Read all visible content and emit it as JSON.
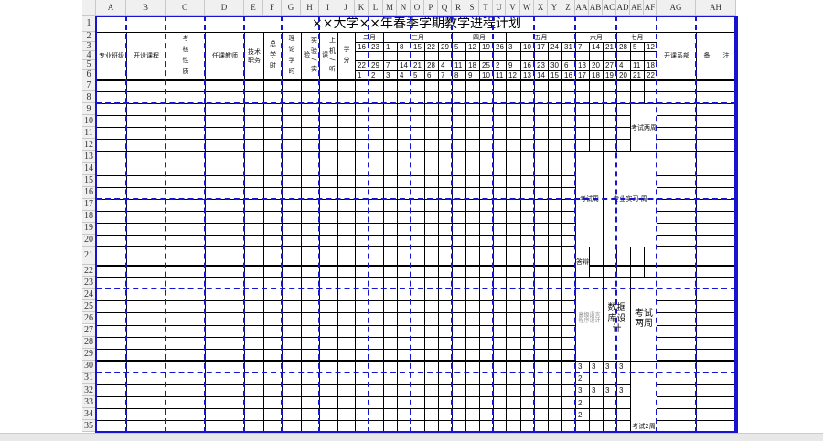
{
  "sheet": {
    "title": "××大学××年春季学期教学进程计划",
    "columns": [
      "A",
      "B",
      "C",
      "D",
      "E",
      "F",
      "G",
      "H",
      "I",
      "J",
      "K",
      "L",
      "M",
      "N",
      "O",
      "P",
      "Q",
      "R",
      "S",
      "T",
      "U",
      "V",
      "W",
      "X",
      "Y",
      "Z",
      "AA",
      "AB",
      "AC",
      "AD",
      "AE",
      "AF",
      "AG",
      "AH"
    ],
    "rows": [
      "1",
      "2",
      "3",
      "4",
      "5",
      "6",
      "7",
      "8",
      "9",
      "10",
      "11",
      "12",
      "13",
      "14",
      "15",
      "16",
      "17",
      "18",
      "19",
      "20",
      "21",
      "22",
      "23",
      "24",
      "25",
      "26",
      "27",
      "28",
      "29",
      "30",
      "31",
      "32",
      "33",
      "34",
      "35"
    ],
    "headers": {
      "major_class": "专业班级",
      "course": "开设课程",
      "exam_type": "考核性质",
      "teacher": "任课教师",
      "title_rank": "技术职务",
      "total_hours": "总学时",
      "theory_hours": "理论学时",
      "lab_hours": "实验/实验",
      "computer_hours": "上机/听课",
      "credits": "学分",
      "department": "开课系部",
      "remarks": "备　　注"
    },
    "months": [
      {
        "label": "二月",
        "span": 2
      },
      {
        "label": "三月",
        "span": 5
      },
      {
        "label": "四月",
        "span": 4
      },
      {
        "label": "五月",
        "span": 5
      },
      {
        "label": "六月",
        "span": 3
      },
      {
        "label": "七月",
        "span": 3
      }
    ],
    "week_start_days": [
      "16",
      "23",
      "1",
      "8",
      "15",
      "22",
      "29",
      "5",
      "12",
      "19",
      "26",
      "3",
      "10",
      "17",
      "24",
      "31",
      "7",
      "14",
      "21",
      "28",
      "5",
      "12"
    ],
    "week_end_days": [
      "22",
      "29",
      "7",
      "14",
      "21",
      "28",
      "4",
      "11",
      "18",
      "25",
      "2",
      "9",
      "16",
      "23",
      "30",
      "6",
      "13",
      "20",
      "27",
      "4",
      "11",
      "18"
    ],
    "week_numbers": [
      "1",
      "2",
      "3",
      "4",
      "5",
      "6",
      "7",
      "8",
      "9",
      "10",
      "11",
      "12",
      "13",
      "14",
      "15",
      "16",
      "17",
      "18",
      "19",
      "20",
      "21",
      "22"
    ],
    "body": {
      "exam_two_weeks_1": "考试两周",
      "exam_week": "考试周",
      "internship": "专业实习 周",
      "defense": "答辩",
      "advanced_programming": "高级语言程序设计",
      "database_design": "数据库设计",
      "exam_two_weeks_2": "考试两周",
      "exam_2_weeks": "考试2周",
      "row30": [
        "3",
        "3",
        "3",
        "3"
      ],
      "row31": [
        "2"
      ],
      "row32": [
        "3",
        "3",
        "3",
        "3"
      ],
      "row33": [
        "2"
      ],
      "row34": [
        "2"
      ]
    },
    "colors": {
      "page_break": "#1515d0",
      "grid": "#000000",
      "header_bg": "#f0f0f0"
    }
  }
}
